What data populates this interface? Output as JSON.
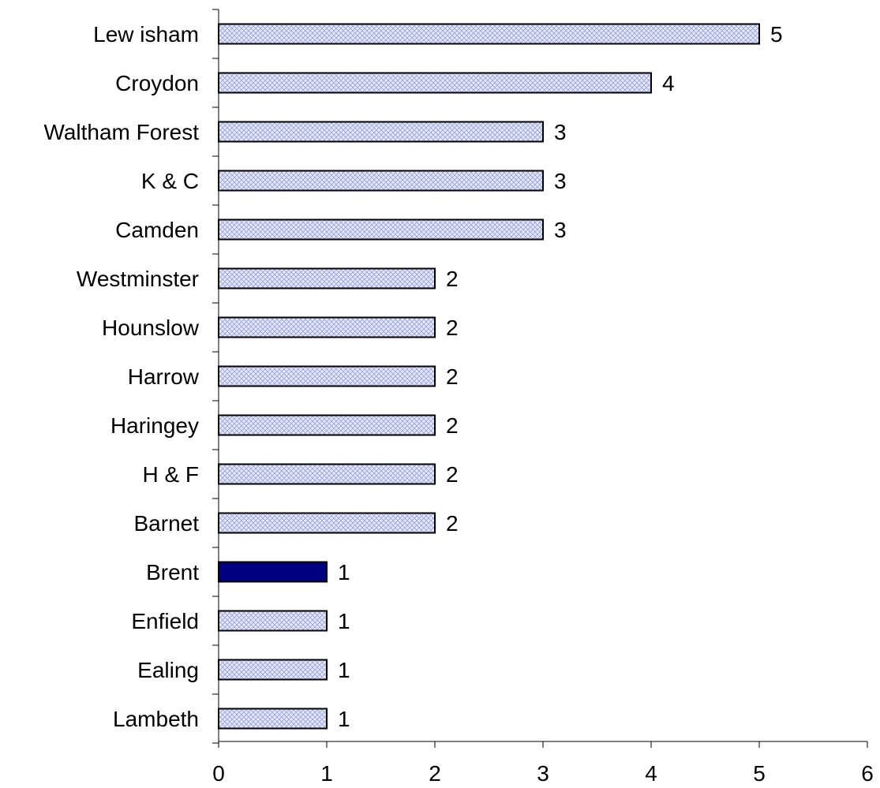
{
  "chart_data": {
    "type": "bar",
    "orientation": "horizontal",
    "title": "",
    "xlabel": "",
    "ylabel": "",
    "categories": [
      "Lew isham",
      "Croydon",
      "Waltham Forest",
      "K & C",
      "Camden",
      "Westminster",
      "Hounslow ",
      "Harrow ",
      "Haringey ",
      "H & F",
      "Barnet",
      "Brent",
      "Enfield",
      "Ealing",
      "Lambeth"
    ],
    "values": [
      5,
      4,
      3,
      3,
      3,
      2,
      2,
      2,
      2,
      2,
      2,
      1,
      1,
      1,
      1
    ],
    "data_labels": [
      "5",
      "4",
      "3",
      "3",
      "3",
      "2",
      "2",
      "2",
      "2",
      "2",
      "2",
      "1",
      "1",
      "1",
      "1"
    ],
    "highlight": "Brent",
    "xlim": [
      0,
      6
    ],
    "xticks": [
      0,
      1,
      2,
      3,
      4,
      5,
      6
    ],
    "xtick_labels": [
      "0",
      "1",
      "2",
      "3",
      "4",
      "5",
      "6"
    ],
    "grid": false,
    "legend": "none",
    "colors": {
      "bar_fill": "#e4e8fa",
      "bar_hatch": "#9aa2dc",
      "highlight_fill": "#000080",
      "outline": "#000000"
    }
  }
}
